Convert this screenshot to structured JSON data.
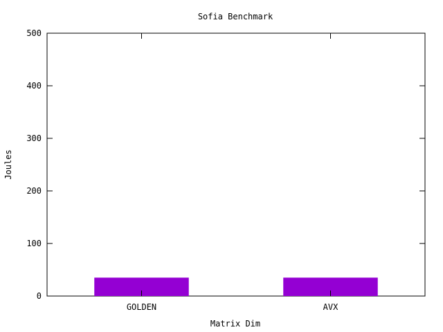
{
  "chart_data": {
    "type": "bar",
    "title": "Sofia Benchmark",
    "xlabel": "Matrix Dim",
    "ylabel": "Joules",
    "categories": [
      "GOLDEN",
      "AVX"
    ],
    "series": [
      {
        "values": [
          35,
          35
        ]
      }
    ],
    "ylim": [
      0,
      500
    ],
    "yticks": [
      0,
      100,
      200,
      300,
      400,
      500
    ],
    "grid": false,
    "legend": "none",
    "colors": {
      "bar": "#9400d3",
      "axis": "#000000"
    }
  }
}
